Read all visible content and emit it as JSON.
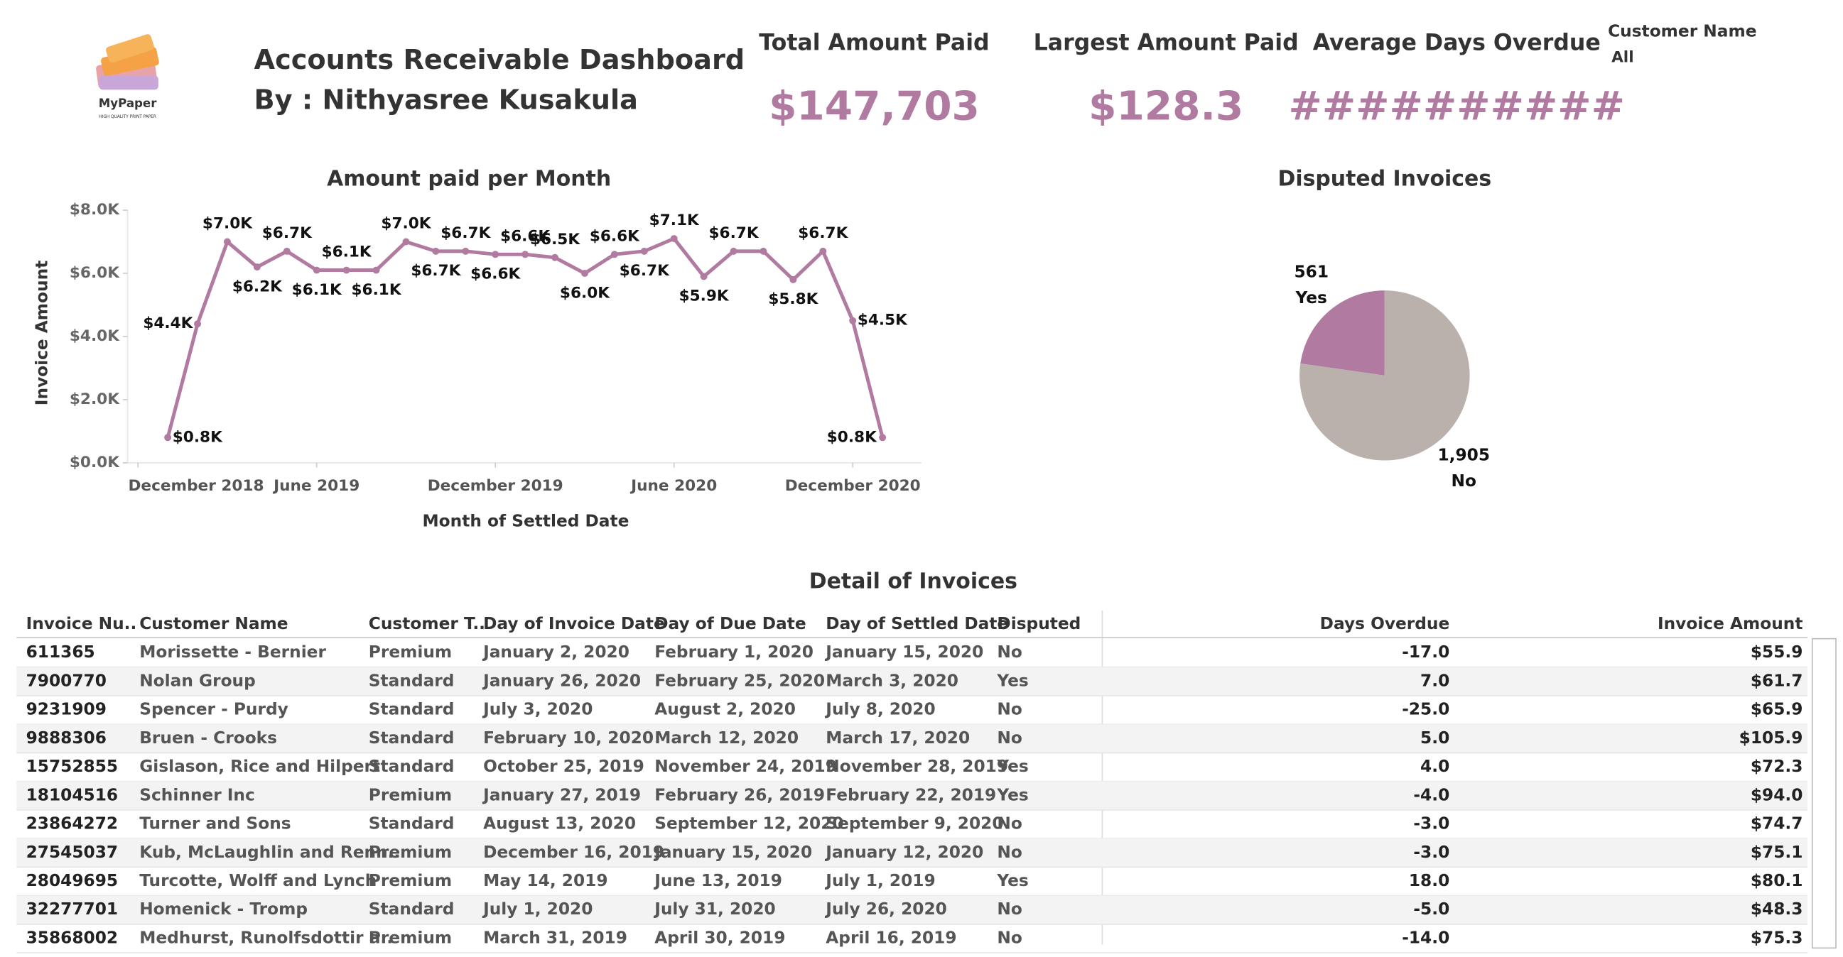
{
  "logo": {
    "name": "MyPaper",
    "tagline": "HIGH QUALITY PRINT PAPER"
  },
  "header": {
    "title": "Accounts Receivable Dashboard",
    "author": "By : Nithyasree Kusakula"
  },
  "kpis": [
    {
      "label": "Total Amount Paid",
      "value": "$147,703"
    },
    {
      "label": "Largest Amount Paid",
      "value": "$128.3"
    },
    {
      "label": "Average Days Overdue",
      "value": "##########"
    }
  ],
  "filter": {
    "label": "Customer Name",
    "value": "All"
  },
  "chart_data": [
    {
      "type": "line",
      "title": "Amount paid per Month",
      "x_label": "Month of Settled Date",
      "y_label": "Invoice Amount",
      "x": [
        "2019-01",
        "2019-02",
        "2019-03",
        "2019-04",
        "2019-05",
        "2019-06",
        "2019-07",
        "2019-08",
        "2019-09",
        "2019-10",
        "2019-11",
        "2019-12",
        "2020-01",
        "2020-02",
        "2020-03",
        "2020-04",
        "2020-05",
        "2020-06",
        "2020-07",
        "2020-08",
        "2020-09",
        "2020-10",
        "2020-11",
        "2020-12",
        "2021-01"
      ],
      "series": [
        {
          "name": "Invoice Amount",
          "color": "#b07aa1",
          "values": [
            800,
            4400,
            7000,
            6200,
            6700,
            6100,
            6100,
            6100,
            7000,
            6700,
            6700,
            6600,
            6600,
            6500,
            6000,
            6600,
            6700,
            7100,
            5900,
            6700,
            6700,
            5800,
            6700,
            4500,
            800
          ],
          "value_labels": [
            "$0.8K",
            "$4.4K",
            "$7.0K",
            "$6.2K",
            "$6.7K",
            "$6.1K",
            "$6.1K",
            "$6.1K",
            "$7.0K",
            "$6.7K",
            "$6.7K",
            "$6.6K",
            "$6.6K",
            "$6.5K",
            "$6.0K",
            "$6.6K",
            "$6.7K",
            "$7.1K",
            "$5.9K",
            "$6.7K",
            null,
            "$5.8K",
            "$6.7K",
            "$4.5K",
            "$0.8K"
          ]
        }
      ],
      "xticks": [
        {
          "value": "2018-12",
          "label": "December 2018"
        },
        {
          "value": "2019-06",
          "label": "June 2019"
        },
        {
          "value": "2019-12",
          "label": "December 2019"
        },
        {
          "value": "2020-06",
          "label": "June 2020"
        },
        {
          "value": "2020-12",
          "label": "December 2020"
        }
      ],
      "ylim": [
        0,
        8000
      ],
      "yticks": [
        {
          "value": 0,
          "label": "$0.0K"
        },
        {
          "value": 2000,
          "label": "$2.0K"
        },
        {
          "value": 4000,
          "label": "$4.0K"
        },
        {
          "value": 6000,
          "label": "$6.0K"
        },
        {
          "value": 8000,
          "label": "$8.0K"
        }
      ],
      "grid": false
    },
    {
      "type": "pie",
      "title": "Disputed Invoices",
      "categories": [
        "Yes",
        "No"
      ],
      "values": [
        561,
        1905
      ],
      "value_labels": [
        "561",
        "1,905"
      ],
      "colors": [
        "#b07aa1",
        "#bab0ac"
      ]
    }
  ],
  "table": {
    "title": "Detail of Invoices",
    "columns": [
      "Invoice Nu..",
      "Customer Name",
      "Customer T..",
      "Day of Invoice Date",
      "Day of Due Date",
      "Day of Settled Date",
      "Disputed",
      "Days Overdue",
      "Invoice Amount"
    ],
    "rows": [
      [
        "611365",
        "Morissette - Bernier",
        "Premium",
        "January 2, 2020",
        "February 1, 2020",
        "January 15, 2020",
        "No",
        "-17.0",
        "$55.9"
      ],
      [
        "7900770",
        "Nolan Group",
        "Standard",
        "January 26, 2020",
        "February 25, 2020",
        "March 3, 2020",
        "Yes",
        "7.0",
        "$61.7"
      ],
      [
        "9231909",
        "Spencer - Purdy",
        "Standard",
        "July 3, 2020",
        "August 2, 2020",
        "July 8, 2020",
        "No",
        "-25.0",
        "$65.9"
      ],
      [
        "9888306",
        "Bruen - Crooks",
        "Standard",
        "February 10, 2020",
        "March 12, 2020",
        "March 17, 2020",
        "No",
        "5.0",
        "$105.9"
      ],
      [
        "15752855",
        "Gislason, Rice and Hilpert",
        "Standard",
        "October 25, 2019",
        "November 24, 2019",
        "November 28, 2019",
        "Yes",
        "4.0",
        "$72.3"
      ],
      [
        "18104516",
        "Schinner Inc",
        "Premium",
        "January 27, 2019",
        "February 26, 2019",
        "February 22, 2019",
        "Yes",
        "-4.0",
        "$94.0"
      ],
      [
        "23864272",
        "Turner and Sons",
        "Standard",
        "August 13, 2020",
        "September 12, 2020",
        "September 9, 2020",
        "No",
        "-3.0",
        "$74.7"
      ],
      [
        "27545037",
        "Kub, McLaughlin and Renn..",
        "Premium",
        "December 16, 2019",
        "January 15, 2020",
        "January 12, 2020",
        "No",
        "-3.0",
        "$75.1"
      ],
      [
        "28049695",
        "Turcotte, Wolff and Lynch",
        "Premium",
        "May 14, 2019",
        "June 13, 2019",
        "July 1, 2019",
        "Yes",
        "18.0",
        "$80.1"
      ],
      [
        "32277701",
        "Homenick - Tromp",
        "Standard",
        "July 1, 2020",
        "July 31, 2020",
        "July 26, 2020",
        "No",
        "-5.0",
        "$48.3"
      ],
      [
        "35868002",
        "Medhurst, Runolfsdottir a..",
        "Premium",
        "March 31, 2019",
        "April 30, 2019",
        "April 16, 2019",
        "No",
        "-14.0",
        "$75.3"
      ]
    ]
  }
}
